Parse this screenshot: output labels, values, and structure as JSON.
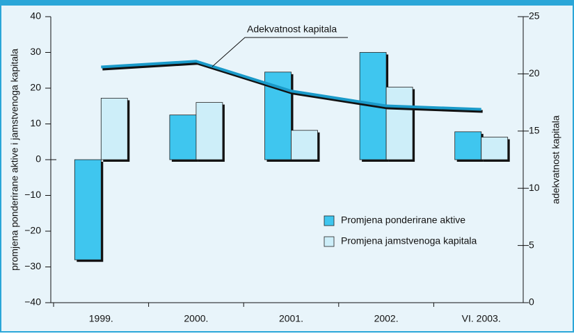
{
  "chart_data": {
    "type": "bar",
    "categories": [
      "1999.",
      "2000.",
      "2001.",
      "2002.",
      "VI. 2003."
    ],
    "series": [
      {
        "name": "Promjena ponderirane aktive",
        "color": "#3fc6ef",
        "type": "bar",
        "values": [
          -28,
          12.5,
          24.5,
          30,
          7.8
        ]
      },
      {
        "name": "Promjena jamstvenoga kapitala",
        "color": "#cdeef9",
        "type": "bar",
        "values": [
          17.2,
          16,
          8.2,
          20.3,
          6.3
        ]
      },
      {
        "name": "Adekvatnost kapitala",
        "color": "#1a9ac9",
        "type": "line",
        "axis": "y2",
        "values": [
          20.6,
          21.1,
          18.5,
          17.2,
          16.9
        ]
      }
    ],
    "ylabel": "promjena ponderirane aktive i jamstvenoga kapitala",
    "y2label": "adekvatnost kapitala",
    "annotation": "Adekvatnost kapitala",
    "ylim": [
      -40,
      40
    ],
    "yticks": [
      {
        "value": -40,
        "label": "−40"
      },
      {
        "value": -30,
        "label": "−30"
      },
      {
        "value": -20,
        "label": "−20"
      },
      {
        "value": -10,
        "label": "−10"
      },
      0,
      10,
      20,
      30,
      40
    ],
    "y2lim": [
      0,
      25
    ],
    "y2ticks": [
      0,
      5,
      10,
      15,
      20,
      25
    ],
    "legend": "lower right"
  }
}
